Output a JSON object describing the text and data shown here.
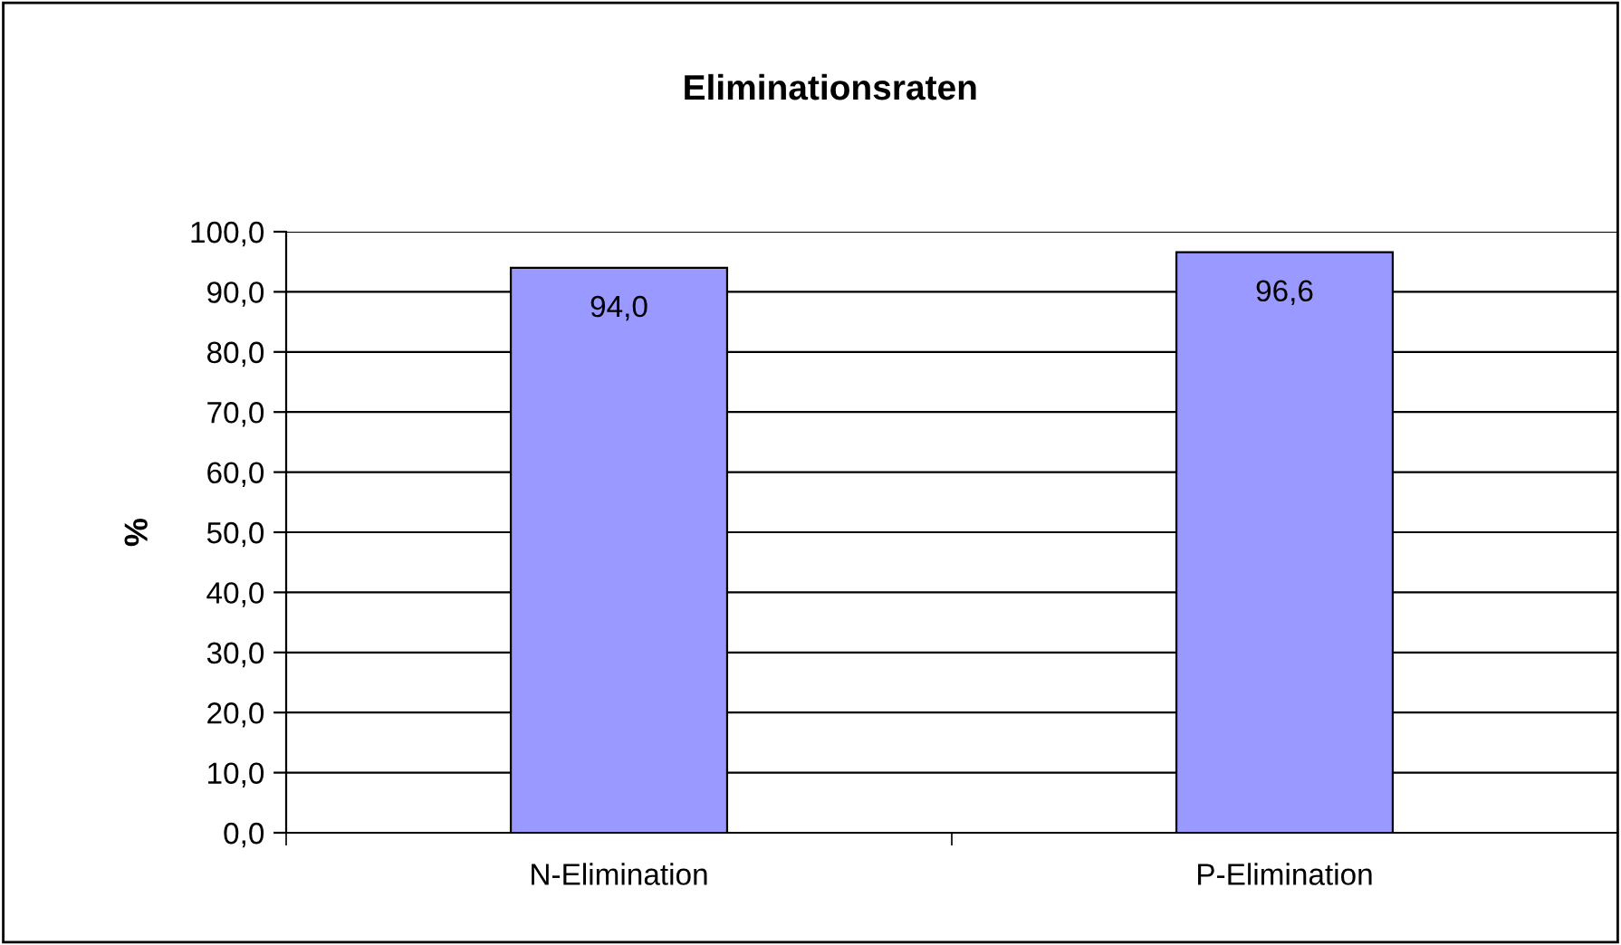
{
  "chart_data": {
    "type": "bar",
    "title": "Eliminationsraten",
    "ylabel": "%",
    "categories": [
      "N-Elimination",
      "P-Elimination"
    ],
    "series": [
      {
        "color": "#9999ff",
        "values": [
          94.0,
          96.6
        ],
        "value_labels": [
          "94,0",
          "96,6"
        ]
      }
    ],
    "ylim": [
      0,
      100
    ],
    "yticks": [
      {
        "value": 0,
        "label": "0,0"
      },
      {
        "value": 10,
        "label": "10,0"
      },
      {
        "value": 20,
        "label": "20,0"
      },
      {
        "value": 30,
        "label": "30,0"
      },
      {
        "value": 40,
        "label": "40,0"
      },
      {
        "value": 50,
        "label": "50,0"
      },
      {
        "value": 60,
        "label": "60,0"
      },
      {
        "value": 70,
        "label": "70,0"
      },
      {
        "value": 80,
        "label": "80,0"
      },
      {
        "value": 90,
        "label": "90,0"
      },
      {
        "value": 100,
        "label": "100,0"
      }
    ],
    "grid": "y",
    "legend": false
  }
}
